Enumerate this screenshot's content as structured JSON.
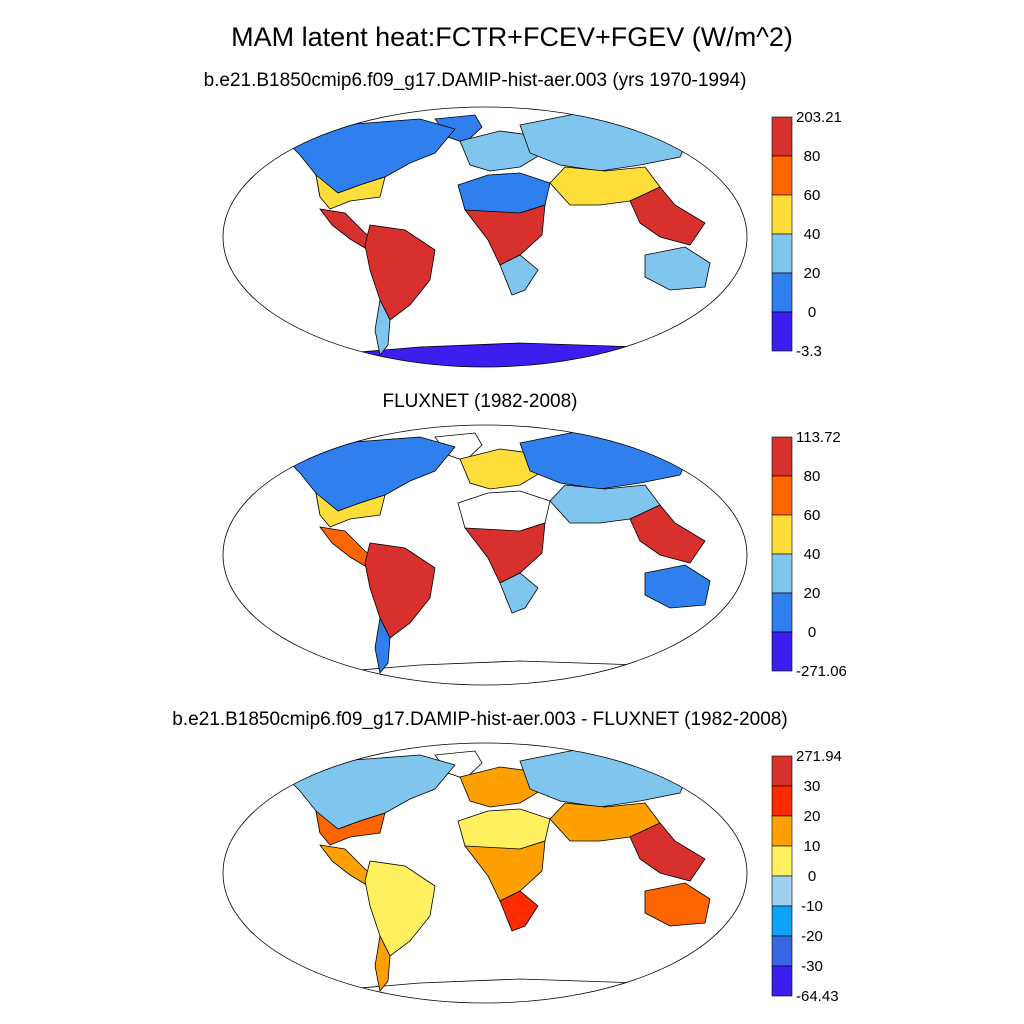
{
  "figure": {
    "title": "MAM latent heat:FCTR+FCEV+FGEV (W/m^2)"
  },
  "panels": [
    {
      "title": "b.e21.B1850cmip6.f09_g17.DAMIP-hist-aer.003 (yrs 1970-1994)",
      "colorbar": {
        "labels": [
          "203.21",
          "80",
          "60",
          "40",
          "20",
          "0",
          "-3.3"
        ],
        "colors": [
          "#d7302d",
          "#fe6500",
          "#ffdd3b",
          "#80c5ee",
          "#2f7fee",
          "#3c1fee"
        ]
      }
    },
    {
      "title": "FLUXNET (1982-2008)",
      "colorbar": {
        "labels": [
          "113.72",
          "80",
          "60",
          "40",
          "20",
          "0",
          "-271.06"
        ],
        "colors": [
          "#d7302d",
          "#fe6500",
          "#ffdd3b",
          "#80c5ee",
          "#2f7fee",
          "#3c1fee"
        ]
      }
    },
    {
      "title": "b.e21.B1850cmip6.f09_g17.DAMIP-hist-aer.003 - FLUXNET (1982-2008)",
      "colorbar": {
        "labels": [
          "271.94",
          "30",
          "20",
          "10",
          "0",
          "-10",
          "-20",
          "-30",
          "-64.43"
        ],
        "colors": [
          "#d7302d",
          "#fe2a00",
          "#fea000",
          "#fff060",
          "#9fd1ee",
          "#0da4f5",
          "#3766e2",
          "#3c1fee"
        ]
      }
    }
  ],
  "map_fills": {
    "panel1": {
      "north_america": "#2f7fee",
      "north_america_south": "#ffdd3b",
      "central_america": "#d7302d",
      "south_america": "#d7302d",
      "south_america_tip": "#80c5ee",
      "greenland": "#2f7fee",
      "europe": "#80c5ee",
      "north_africa": "#2f7fee",
      "central_africa": "#d7302d",
      "south_africa": "#80c5ee",
      "asia": "#80c5ee",
      "asia_south": "#ffdd3b",
      "se_asia": "#d7302d",
      "australia": "#80c5ee",
      "antarctica": "#3c1fee"
    },
    "panel2": {
      "north_america": "#2f7fee",
      "north_america_south": "#ffdd3b",
      "central_america": "#fe6500",
      "south_america": "#d7302d",
      "south_america_tip": "#2f7fee",
      "greenland": "#ffffff",
      "europe": "#ffdd3b",
      "north_africa": "#ffffff",
      "central_africa": "#d7302d",
      "south_africa": "#80c5ee",
      "asia": "#2f7fee",
      "asia_south": "#80c5ee",
      "se_asia": "#d7302d",
      "australia": "#2f7fee",
      "antarctica": "#ffffff"
    },
    "panel3": {
      "north_america": "#80c5ee",
      "north_america_south": "#fe6500",
      "central_america": "#fea000",
      "south_america": "#fff060",
      "south_america_tip": "#fea000",
      "greenland": "#ffffff",
      "europe": "#fea000",
      "north_africa": "#fff060",
      "central_africa": "#fea000",
      "south_africa": "#fe2a00",
      "asia": "#80c5ee",
      "asia_south": "#fea000",
      "se_asia": "#d7302d",
      "australia": "#fe6500",
      "antarctica": "#ffffff"
    }
  }
}
